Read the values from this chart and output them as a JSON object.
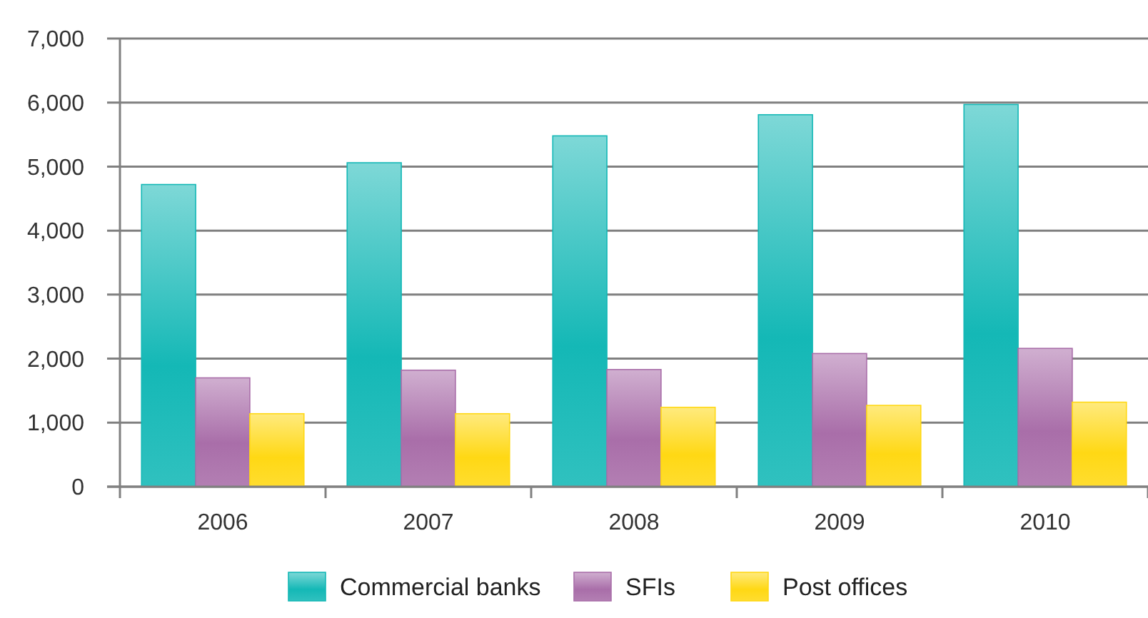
{
  "chart_data": {
    "type": "bar",
    "categories": [
      "2006",
      "2007",
      "2008",
      "2009",
      "2010"
    ],
    "series": [
      {
        "name": "Commercial banks",
        "color": "#14b8b6",
        "values": [
          4720,
          5060,
          5480,
          5810,
          5970
        ]
      },
      {
        "name": "SFIs",
        "color": "#a96ea9",
        "values": [
          1700,
          1820,
          1830,
          2080,
          2160
        ]
      },
      {
        "name": "Post offices",
        "color": "#ffd814",
        "values": [
          1140,
          1140,
          1240,
          1270,
          1320
        ]
      }
    ],
    "ylim": [
      0,
      7000
    ],
    "yticks": [
      {
        "value": 0,
        "label": "0"
      },
      {
        "value": 1000,
        "label": "1,000"
      },
      {
        "value": 2000,
        "label": "2,000"
      },
      {
        "value": 3000,
        "label": "3,000"
      },
      {
        "value": 4000,
        "label": "4,000"
      },
      {
        "value": 5000,
        "label": "5,000"
      },
      {
        "value": 6000,
        "label": "6,000"
      },
      {
        "value": 7000,
        "label": "7,000"
      }
    ],
    "grid": "y",
    "legend": "bottom"
  }
}
